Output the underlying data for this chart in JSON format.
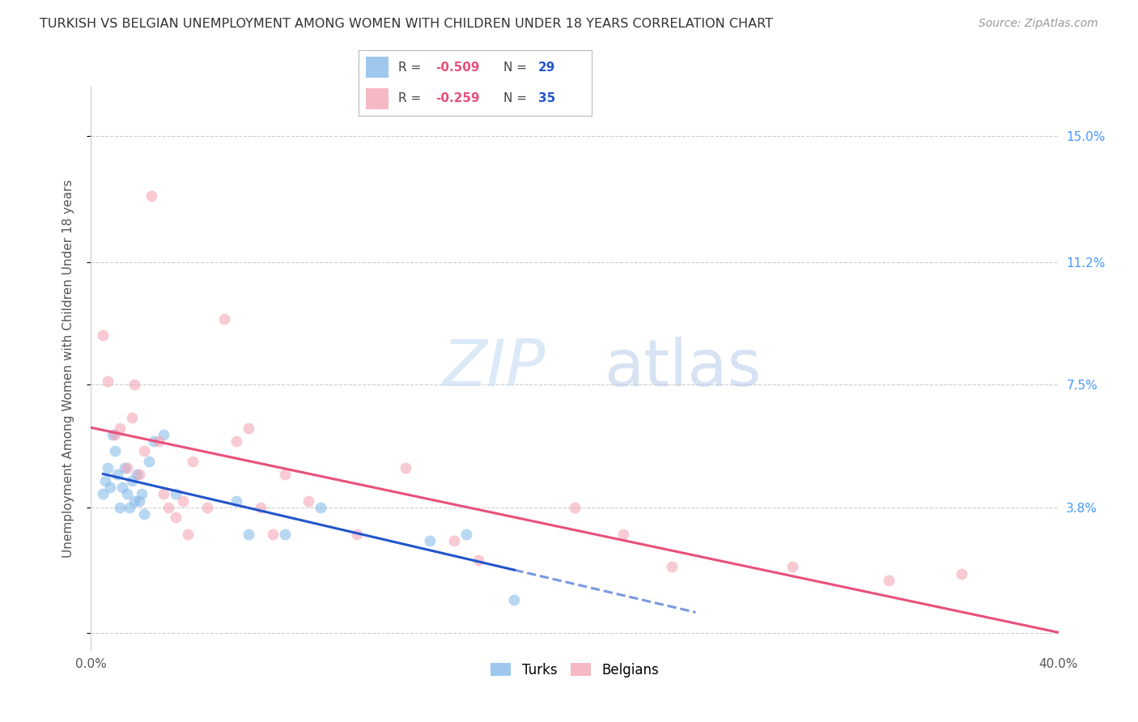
{
  "title": "TURKISH VS BELGIAN UNEMPLOYMENT AMONG WOMEN WITH CHILDREN UNDER 18 YEARS CORRELATION CHART",
  "source": "Source: ZipAtlas.com",
  "ylabel": "Unemployment Among Women with Children Under 18 years",
  "xlim": [
    0.0,
    0.4
  ],
  "ylim": [
    -0.005,
    0.165
  ],
  "xtick_positions": [
    0.0,
    0.05,
    0.1,
    0.15,
    0.2,
    0.25,
    0.3,
    0.35,
    0.4
  ],
  "xtick_labels": [
    "0.0%",
    "",
    "",
    "",
    "",
    "",
    "",
    "",
    "40.0%"
  ],
  "ytick_positions": [
    0.0,
    0.038,
    0.075,
    0.112,
    0.15
  ],
  "right_ytick_labels": [
    "",
    "3.8%",
    "7.5%",
    "11.2%",
    "15.0%"
  ],
  "grid_color": "#cccccc",
  "background_color": "#ffffff",
  "turks_color": "#7EB6E8",
  "belgians_color": "#F4A0B0",
  "turks_line_color": "#2255CC",
  "belgians_line_color": "#E8507A",
  "turks_R": -0.509,
  "turks_N": 29,
  "belgians_R": -0.259,
  "belgians_N": 35,
  "turks_x": [
    0.005,
    0.006,
    0.007,
    0.008,
    0.009,
    0.01,
    0.011,
    0.012,
    0.013,
    0.014,
    0.015,
    0.016,
    0.017,
    0.018,
    0.019,
    0.02,
    0.021,
    0.022,
    0.024,
    0.026,
    0.03,
    0.035,
    0.06,
    0.065,
    0.08,
    0.095,
    0.14,
    0.155,
    0.175
  ],
  "turks_y": [
    0.042,
    0.046,
    0.05,
    0.044,
    0.06,
    0.055,
    0.048,
    0.038,
    0.044,
    0.05,
    0.042,
    0.038,
    0.046,
    0.04,
    0.048,
    0.04,
    0.042,
    0.036,
    0.052,
    0.058,
    0.06,
    0.042,
    0.04,
    0.03,
    0.03,
    0.038,
    0.028,
    0.03,
    0.01
  ],
  "belgians_x": [
    0.005,
    0.007,
    0.01,
    0.012,
    0.015,
    0.017,
    0.018,
    0.02,
    0.022,
    0.025,
    0.028,
    0.03,
    0.032,
    0.035,
    0.038,
    0.04,
    0.042,
    0.048,
    0.055,
    0.06,
    0.065,
    0.07,
    0.075,
    0.08,
    0.09,
    0.11,
    0.13,
    0.15,
    0.16,
    0.2,
    0.22,
    0.24,
    0.29,
    0.33,
    0.36
  ],
  "belgians_y": [
    0.09,
    0.076,
    0.06,
    0.062,
    0.05,
    0.065,
    0.075,
    0.048,
    0.055,
    0.132,
    0.058,
    0.042,
    0.038,
    0.035,
    0.04,
    0.03,
    0.052,
    0.038,
    0.095,
    0.058,
    0.062,
    0.038,
    0.03,
    0.048,
    0.04,
    0.03,
    0.05,
    0.028,
    0.022,
    0.038,
    0.03,
    0.02,
    0.02,
    0.016,
    0.018
  ],
  "marker_size": 100,
  "marker_alpha": 0.55,
  "line_width": 2.2
}
